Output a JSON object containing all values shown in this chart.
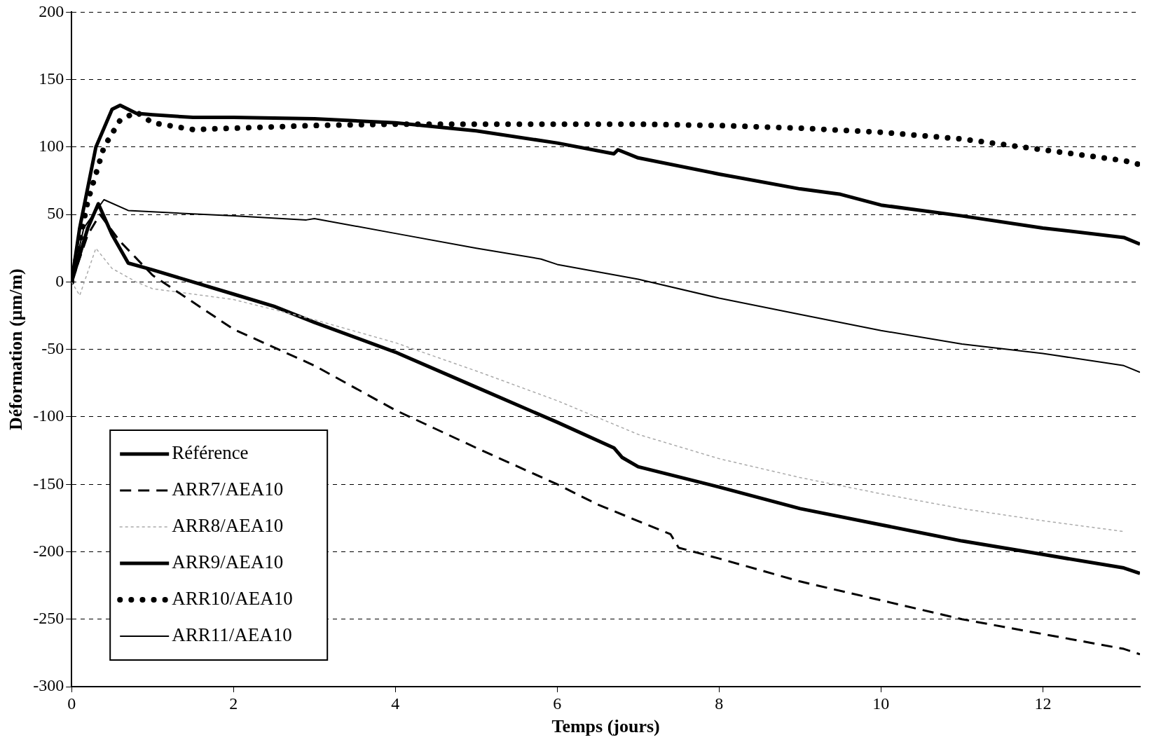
{
  "chart_data": {
    "type": "line",
    "xlabel": "Temps (jours)",
    "ylabel": "Déformation (µm/m)",
    "xlim": [
      0,
      13.2
    ],
    "xticks": [
      0,
      2,
      4,
      6,
      8,
      10,
      12
    ],
    "ylim": [
      -300,
      200
    ],
    "yticks": [
      -300,
      -250,
      -200,
      -150,
      -100,
      -50,
      0,
      50,
      100,
      150,
      200
    ],
    "grid": "y",
    "legend": "bottom left",
    "marker": "none",
    "series": [
      {
        "name": "Référence",
        "color": "#000000",
        "line_style": "solid",
        "x": [
          0,
          0.1,
          0.3,
          0.5,
          0.6,
          0.8,
          1,
          1.5,
          2,
          3,
          4,
          5,
          6,
          6.7,
          6.75,
          7,
          8,
          9,
          9.5,
          10,
          11,
          12,
          13,
          13.2
        ],
        "values": [
          0,
          40,
          100,
          128,
          131,
          125,
          124,
          122,
          122,
          121,
          118,
          112,
          103,
          95,
          98,
          92,
          80,
          69,
          65,
          57,
          49,
          40,
          33,
          28
        ]
      },
      {
        "name": "ARR7/AEA10",
        "color": "#000000",
        "line_style": "dashed",
        "x": [
          0,
          0.2,
          0.35,
          0.6,
          1,
          1.5,
          2,
          3,
          4,
          5,
          6,
          6.5,
          7.4,
          7.5,
          8,
          9,
          10,
          11,
          12,
          13,
          13.2
        ],
        "values": [
          0,
          35,
          50,
          30,
          5,
          -15,
          -35,
          -62,
          -95,
          -123,
          -150,
          -165,
          -187,
          -197,
          -205,
          -222,
          -236,
          -250,
          -261,
          -272,
          -276
        ]
      },
      {
        "name": "ARR8/AEA10",
        "color": "#aaaaaa",
        "line_style": "dotted",
        "x": [
          0,
          0.1,
          0.3,
          0.5,
          0.8,
          1,
          2,
          3,
          4,
          5,
          6,
          7,
          8,
          9,
          10,
          11,
          12,
          13
        ],
        "values": [
          0,
          -10,
          25,
          10,
          0,
          -5,
          -13,
          -28,
          -45,
          -66,
          -88,
          -113,
          -131,
          -145,
          -157,
          -168,
          -177,
          -185
        ]
      },
      {
        "name": "ARR9/AEA10",
        "color": "#000000",
        "line_style": "solid",
        "x": [
          0,
          0.2,
          0.33,
          0.5,
          0.7,
          1,
          2,
          2.5,
          3,
          4,
          5,
          6,
          6.7,
          6.8,
          7,
          8,
          9,
          10,
          11,
          12,
          13,
          13.2
        ],
        "values": [
          0,
          40,
          58,
          35,
          14,
          9,
          -9,
          -18,
          -30,
          -52,
          -78,
          -104,
          -123,
          -130,
          -137,
          -152,
          -168,
          -180,
          -192,
          -202,
          -212,
          -216
        ]
      },
      {
        "name": "ARR10/AEA10",
        "color": "#000000",
        "line_style": "dotted",
        "x": [
          0,
          0.2,
          0.4,
          0.6,
          0.8,
          1,
          1.5,
          2,
          3,
          4,
          5,
          6,
          7,
          8,
          9,
          10,
          11,
          12,
          13,
          13.2
        ],
        "values": [
          0,
          60,
          100,
          120,
          126,
          118,
          113,
          114,
          116,
          117,
          117,
          117,
          117,
          116,
          114,
          111,
          106,
          98,
          90,
          87
        ]
      },
      {
        "name": "ARR11/AEA10",
        "color": "#000000",
        "line_style": "solid",
        "x": [
          0,
          0.15,
          0.4,
          0.7,
          1,
          2,
          2.9,
          3,
          4,
          5,
          5.8,
          6,
          7,
          8,
          9,
          10,
          11,
          12,
          13,
          13.2
        ],
        "values": [
          0,
          40,
          61,
          53,
          52,
          49,
          46,
          47,
          36,
          25,
          17,
          13,
          2,
          -12,
          -24,
          -36,
          -46,
          -53,
          -62,
          -67
        ]
      }
    ]
  }
}
